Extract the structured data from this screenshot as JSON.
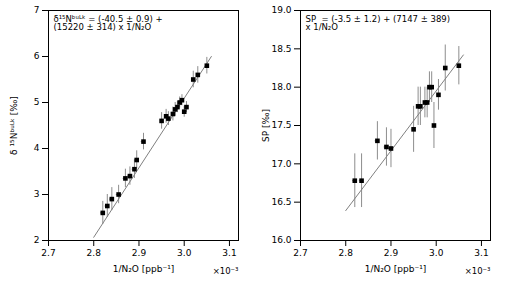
{
  "chart_data": [
    {
      "type": "scatter",
      "xlabel": "1/N₂O [ppb⁻¹]",
      "ylabel": "δ ¹⁵Nᵇᵘᴸᵏ [‰]",
      "annotations": [
        "δ¹⁵Nᵇᵘᴸᵏ = (-40.5 ± 0.9) +\n(15220 ± 314) x 1/N₂O",
        "×10⁻³"
      ],
      "x": [
        2.82,
        2.83,
        2.84,
        2.855,
        2.87,
        2.88,
        2.89,
        2.895,
        2.91,
        2.95,
        2.96,
        2.965,
        2.975,
        2.98,
        2.985,
        2.99,
        2.995,
        3.0,
        3.005,
        3.02,
        3.03,
        3.05
      ],
      "values": [
        2.6,
        2.75,
        2.9,
        3.0,
        3.35,
        3.4,
        3.55,
        3.75,
        4.15,
        4.6,
        4.7,
        4.65,
        4.75,
        4.85,
        4.9,
        5.0,
        5.05,
        4.8,
        4.9,
        5.5,
        5.6,
        5.8
      ],
      "color": "black",
      "marker": "square",
      "error_bars": {
        "xerr": [
          0.005,
          0.005,
          0.005,
          0.005,
          0.005,
          0.005,
          0.005,
          0.005,
          0.005,
          0.003,
          0.003,
          0.003,
          0.003,
          0.003,
          0.003,
          0.003,
          0.003,
          0.003,
          0.003,
          0.003,
          0.003,
          0.003
        ],
        "yerr": [
          0.25,
          0.25,
          0.25,
          0.2,
          0.2,
          0.2,
          0.2,
          0.2,
          0.18,
          0.18,
          0.15,
          0.15,
          0.15,
          0.15,
          0.12,
          0.12,
          0.12,
          0.12,
          0.12,
          0.18,
          0.18,
          0.18
        ],
        "color": "gray"
      },
      "fit": {
        "x": [
          2.8,
          3.06
        ],
        "y": [
          2.07,
          6.0
        ],
        "color": "gray",
        "line_style": "solid"
      },
      "xlim": [
        2.7,
        3.12
      ],
      "xticks": [
        2.7,
        2.8,
        2.9,
        {
          "value": 3,
          "label": "3.0"
        },
        3.1
      ],
      "ylim": [
        2.0,
        7.0
      ],
      "yticks": [
        2,
        3,
        4,
        5,
        6,
        7
      ],
      "grid": false
    },
    {
      "type": "scatter",
      "xlabel": "1/N₂O [ppb⁻¹]",
      "ylabel": "SP [‰]",
      "annotations": [
        "SP  = (-3.5 ± 1.2) + (7147 ± 389)\nx 1/N₂O",
        "×10⁻³"
      ],
      "x": [
        2.82,
        2.835,
        2.87,
        2.89,
        2.9,
        2.95,
        2.96,
        2.965,
        2.975,
        2.98,
        2.985,
        2.99,
        2.995,
        3.005,
        3.02,
        3.05
      ],
      "values": [
        16.78,
        16.78,
        17.3,
        17.22,
        17.2,
        17.45,
        17.75,
        17.75,
        17.8,
        17.8,
        18.0,
        18.0,
        17.5,
        17.9,
        18.25,
        18.28
      ],
      "color": "black",
      "marker": "square",
      "error_bars": {
        "xerr": [
          0.005,
          0.005,
          0.005,
          0.005,
          0.005,
          0.003,
          0.003,
          0.003,
          0.003,
          0.003,
          0.003,
          0.003,
          0.003,
          0.003,
          0.003,
          0.003
        ],
        "yerr": [
          0.35,
          0.35,
          0.25,
          0.25,
          0.25,
          0.3,
          0.25,
          0.25,
          0.2,
          0.2,
          0.2,
          0.2,
          0.3,
          0.2,
          0.3,
          0.25
        ],
        "color": "gray"
      },
      "fit": {
        "x": [
          2.8,
          3.06
        ],
        "y": [
          16.39,
          18.42
        ],
        "color": "gray",
        "line_style": "solid"
      },
      "xlim": [
        2.7,
        3.12
      ],
      "xticks": [
        2.7,
        2.8,
        2.9,
        {
          "value": 3,
          "label": "3.0"
        },
        3.1
      ],
      "ylim": [
        16.0,
        19.0
      ],
      "yticks": [
        {
          "value": 16,
          "label": "16.0"
        },
        16.5,
        {
          "value": 17,
          "label": "17.0"
        },
        17.5,
        {
          "value": 18,
          "label": "18.0"
        },
        18.5,
        {
          "value": 19,
          "label": "19.0"
        }
      ],
      "grid": false
    }
  ]
}
